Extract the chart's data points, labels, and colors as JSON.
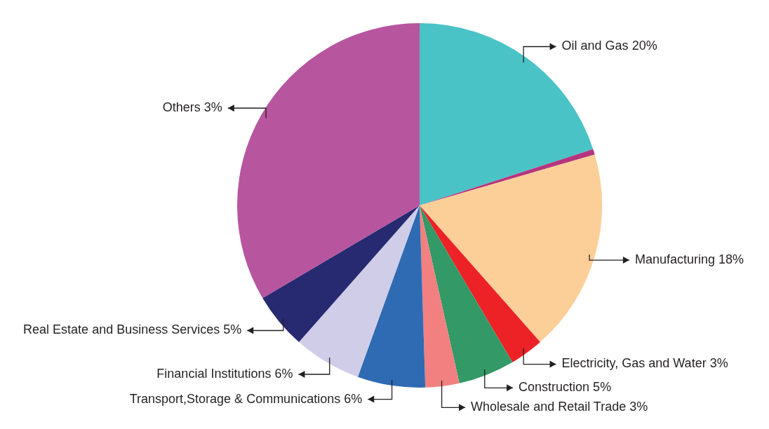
{
  "chart_data": {
    "type": "pie",
    "categories": [
      "Oil and Gas 20%",
      null,
      "Manufacturing 18%",
      "Electricity, Gas and Water 3%",
      "Construction 5%",
      "Wholesale and Retail Trade 3%",
      "Transport,Storage & Communications 6%",
      "Financial Institutions 6%",
      "Real Estate and Business Services 5%",
      "Others 3%"
    ],
    "values": [
      20,
      0.5,
      18,
      3,
      5,
      3,
      6,
      6,
      5,
      33.5
    ],
    "colors": [
      "#4ac3c7",
      "#b5357f",
      "#fccf98",
      "#ec2227",
      "#339966",
      "#f28080",
      "#2e6bb3",
      "#cfcde8",
      "#272a70",
      "#b7559f"
    ],
    "legend": false
  }
}
